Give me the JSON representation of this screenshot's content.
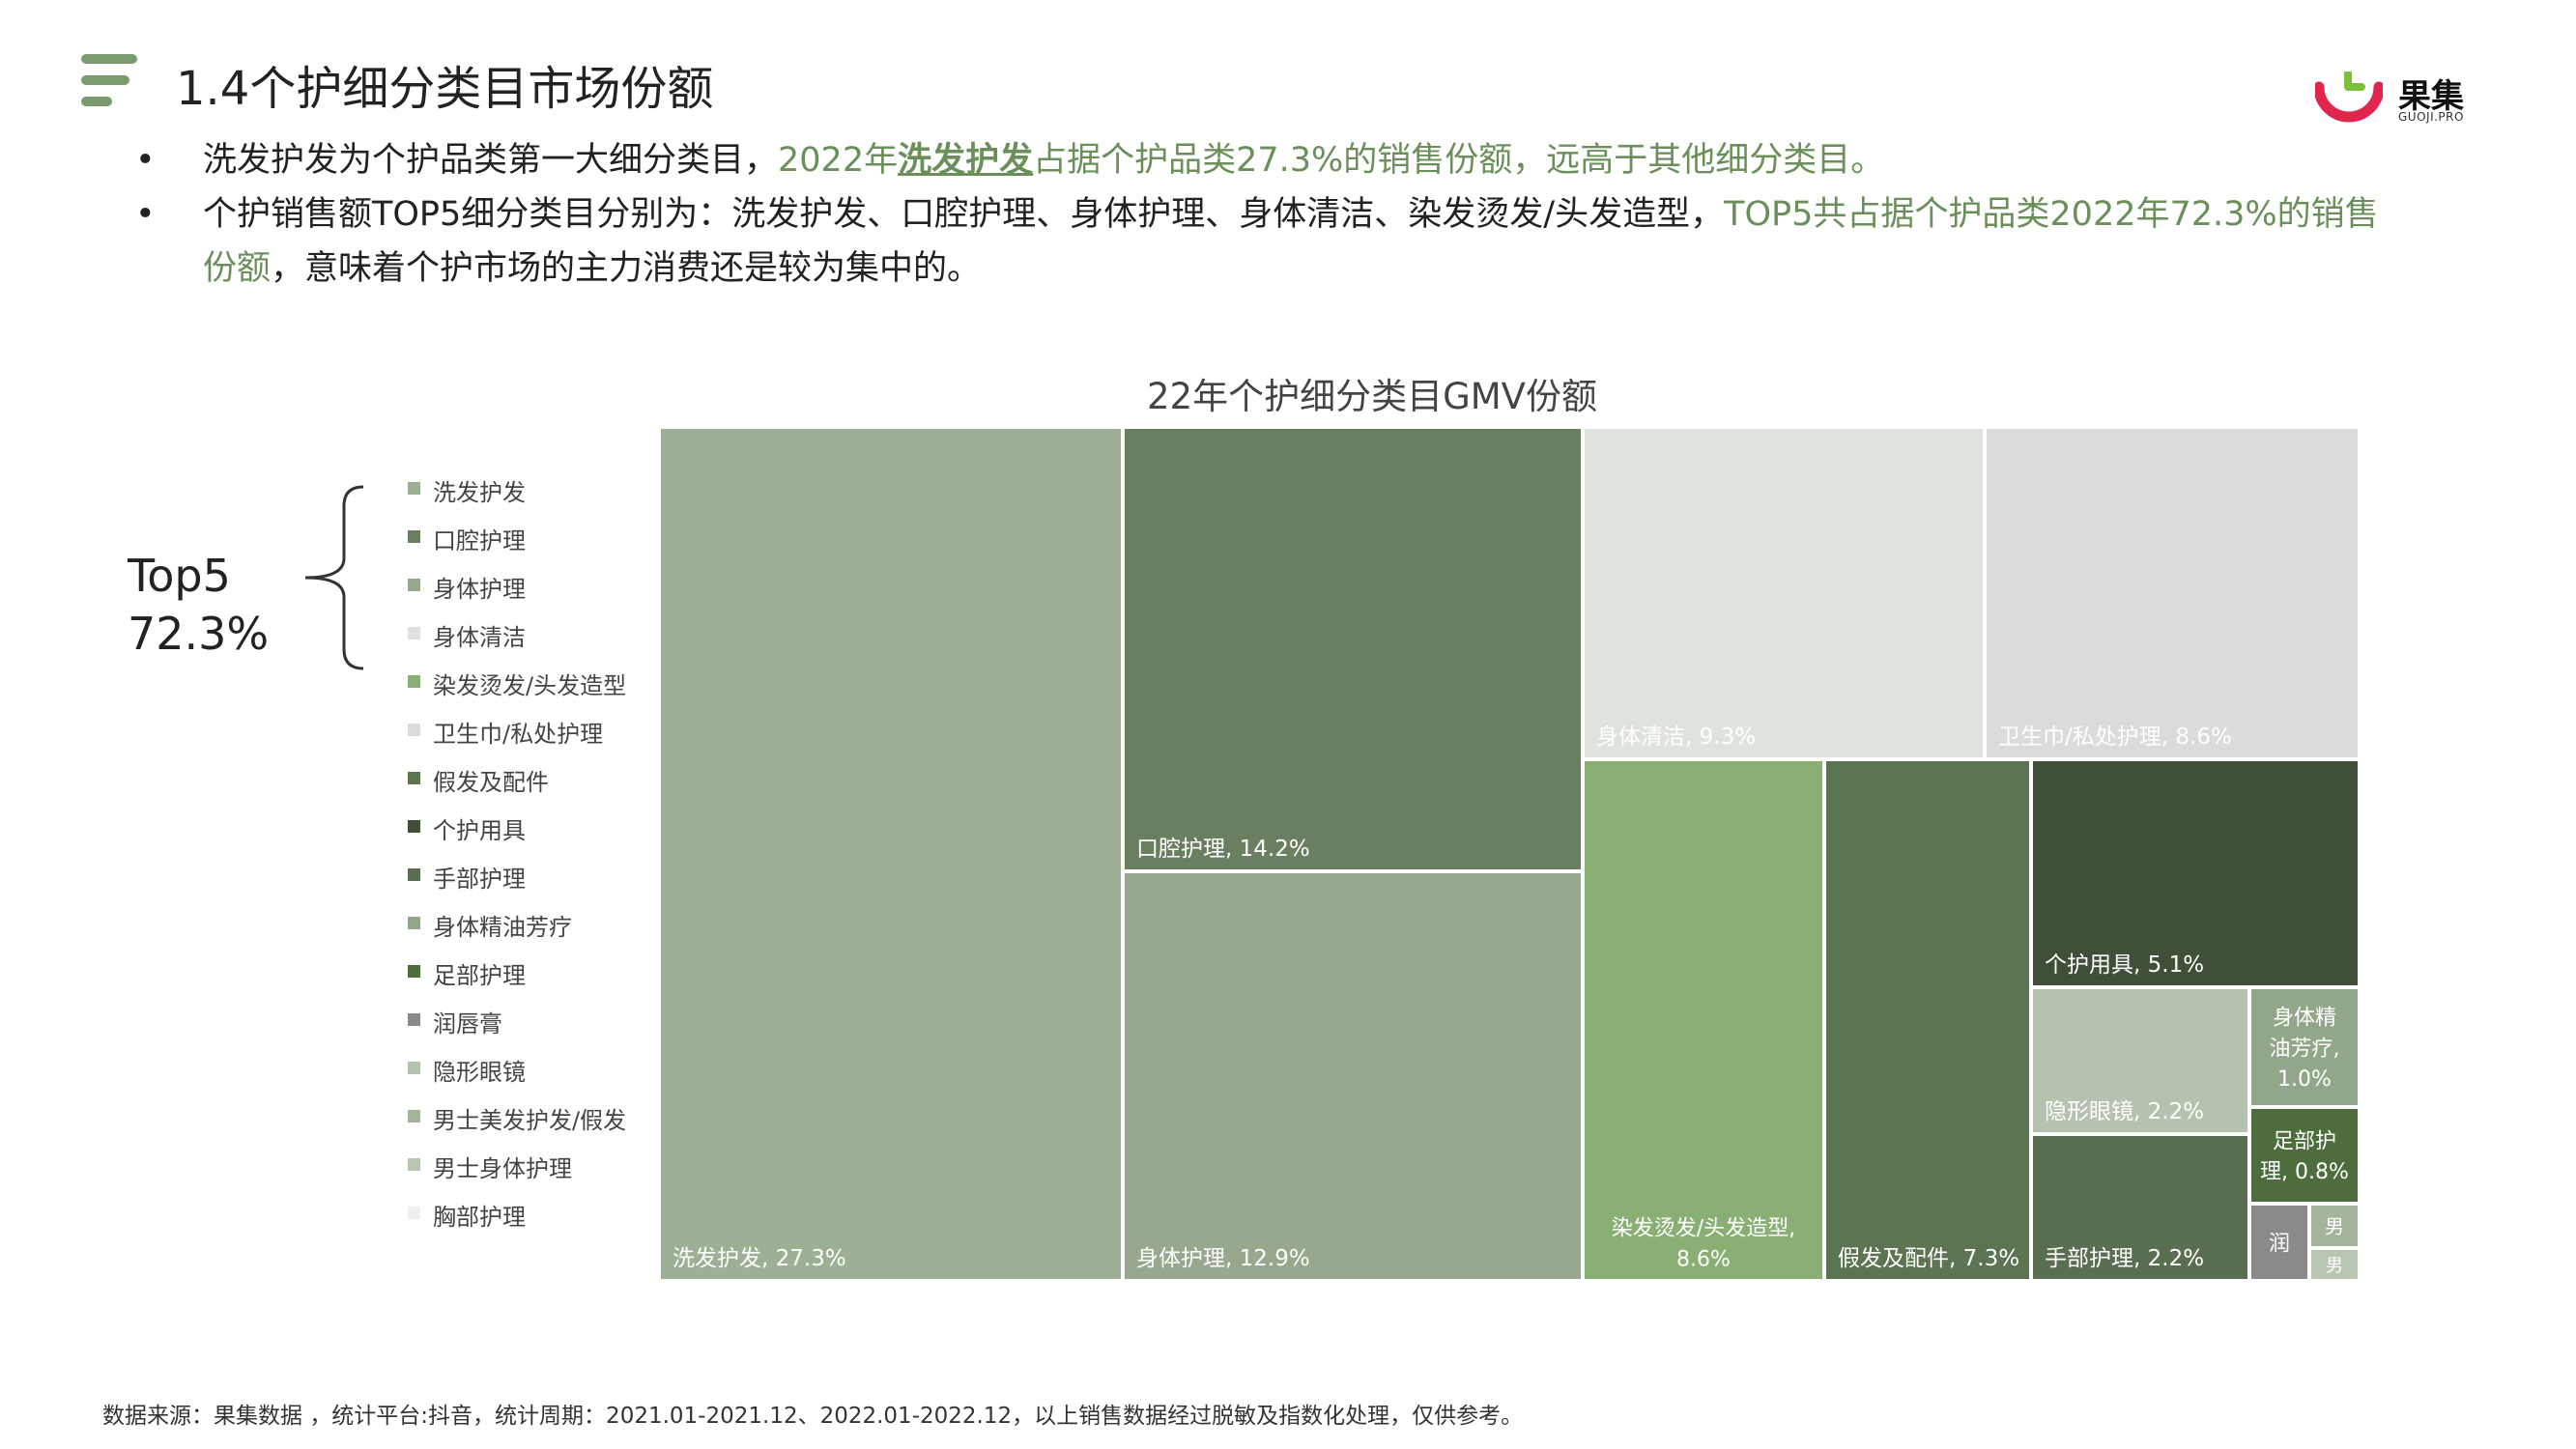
{
  "page": {
    "title": "1.4个护细分类目市场份额",
    "logo_text": "果集",
    "logo_sub": "GUOJI.PRO",
    "bullet_marker": "•",
    "bullet1": {
      "p1": "洗发护发为个护品类第一大细分类目，",
      "p2": "2022年",
      "p3": "洗发护发",
      "p4": "占据个护品类27.3%的销售份额，远高于其他细分类目。"
    },
    "bullet2": {
      "p1": "个护销售额TOP5细分类目分别为：洗发护发、口腔护理、身体护理、身体清洁、染发烫发/头发造型，",
      "p2": "TOP5共占据个护品类2022年72.3%的销售份额",
      "p3": "，意味着个护市场的主力消费还是较为集中的。"
    },
    "top5_label": "Top5",
    "top5_value": "72.3%",
    "source": "数据来源：果集数据 ，统计平台:抖音，统计周期：2021.01-2021.12、2022.01-2022.12，以上销售数据经过脱敏及指数化处理，仅供参考。"
  },
  "colors": {
    "accent": "#6b8f5a",
    "menu_icon": "#7a9b6e",
    "logo_red": "#e0264c",
    "logo_green": "#7bbf3a"
  },
  "chart_data": {
    "type": "treemap",
    "title": "22年个护细分类目GMV份额",
    "legend_position": "left",
    "items": [
      {
        "name": "洗发护发",
        "value": 27.3,
        "label": "洗发护发, 27.3%",
        "color": "#9db095"
      },
      {
        "name": "口腔护理",
        "value": 14.2,
        "label": "口腔护理, 14.2%",
        "color": "#6a7f5f"
      },
      {
        "name": "身体护理",
        "value": 12.9,
        "label": "身体护理, 12.9%",
        "color": "#97a88f"
      },
      {
        "name": "身体清洁",
        "value": 9.3,
        "label": "身体清洁, 9.3%",
        "color": "#dfe3dd"
      },
      {
        "name": "染发烫发/头发造型",
        "value": 8.6,
        "label": "染发烫发/头发造型, 8.6%",
        "color": "#8aaf74"
      },
      {
        "name": "卫生巾/私处护理",
        "value": 8.6,
        "label": "卫生巾/私处护理, 8.6%",
        "color": "#d9dcd8"
      },
      {
        "name": "假发及配件",
        "value": 7.3,
        "label": "假发及配件, 7.3%",
        "color": "#5c7452"
      },
      {
        "name": "个护用具",
        "value": 5.1,
        "label": "个护用具, 5.1%",
        "color": "#404f38"
      },
      {
        "name": "手部护理",
        "value": 2.2,
        "label": "手部护理, 2.2%",
        "color": "#5a6e51"
      },
      {
        "name": "身体精油芳疗",
        "value": 1.0,
        "label": "身体精油芳疗, 1.0%",
        "color": "#92a78a"
      },
      {
        "name": "足部护理",
        "value": 0.8,
        "label": "足部护理, 0.8%",
        "color": "#4e6d3c"
      },
      {
        "name": "润唇膏",
        "value": null,
        "label": "润",
        "color": "#8a8a8a"
      },
      {
        "name": "隐形眼镜",
        "value": 2.2,
        "label": "隐形眼镜, 2.2%",
        "color": "#b6c2b0"
      },
      {
        "name": "男士美发护发/假发",
        "value": null,
        "label": "男",
        "color": "#a3b49b"
      },
      {
        "name": "男士身体护理",
        "value": null,
        "label": "男",
        "color": "#b9c5b3"
      },
      {
        "name": "胸部护理",
        "value": null,
        "label": "",
        "color": "#eef0ed"
      }
    ],
    "legend_order": [
      "洗发护发",
      "口腔护理",
      "身体护理",
      "身体清洁",
      "染发烫发/头发造型",
      "卫生巾/私处护理",
      "假发及配件",
      "个护用具",
      "手部护理",
      "身体精油芳疗",
      "足部护理",
      "润唇膏",
      "隐形眼镜",
      "男士美发护发/假发",
      "男士身体护理",
      "胸部护理"
    ]
  }
}
